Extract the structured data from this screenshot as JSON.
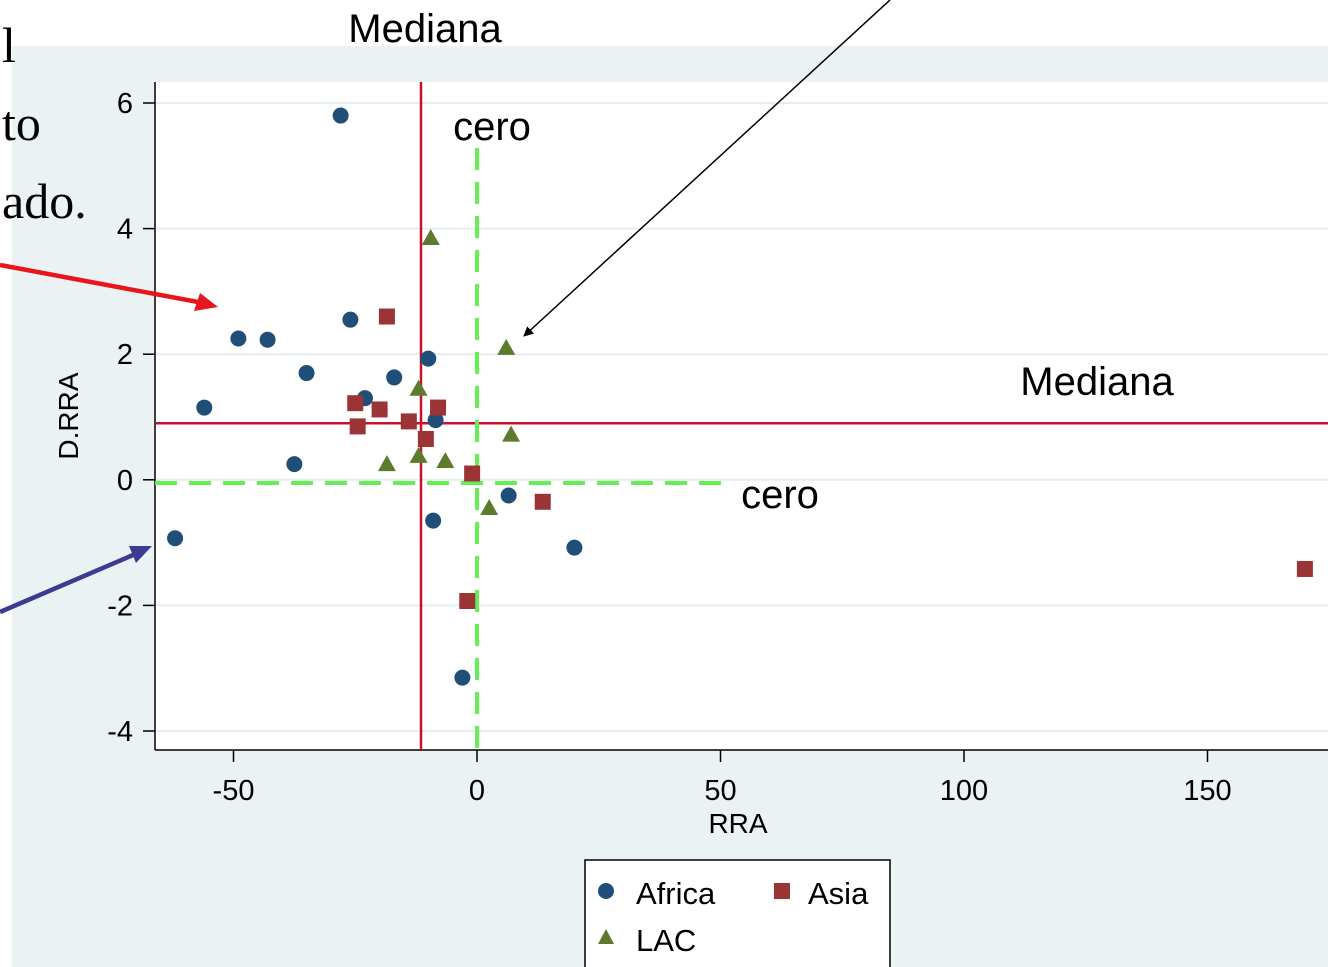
{
  "chart_data": {
    "type": "scatter",
    "xlabel": "RRA",
    "ylabel": "D.RRA",
    "xlim": [
      -66,
      175
    ],
    "ylim": [
      -4.4,
      6.4
    ],
    "x_ticks": [
      -50,
      0,
      50,
      100,
      150
    ],
    "y_ticks": [
      -4,
      -2,
      0,
      2,
      4,
      6
    ],
    "grid": "horizontal",
    "legend": "bottom",
    "series": [
      {
        "name": "Africa",
        "marker": "circle",
        "color": "#1f4e79",
        "points": [
          [
            -28,
            5.8
          ],
          [
            -26,
            2.55
          ],
          [
            -49,
            2.25
          ],
          [
            -43,
            2.23
          ],
          [
            -35,
            1.7
          ],
          [
            -56,
            1.15
          ],
          [
            -37.5,
            0.25
          ],
          [
            -23,
            1.3
          ],
          [
            -17,
            1.63
          ],
          [
            -10,
            1.93
          ],
          [
            -8.5,
            0.95
          ],
          [
            -9,
            -0.65
          ],
          [
            6.5,
            -0.25
          ],
          [
            20,
            -1.08
          ],
          [
            -3,
            -3.15
          ],
          [
            -62,
            -0.93
          ]
        ]
      },
      {
        "name": "Asia",
        "marker": "square",
        "color": "#9b3535",
        "points": [
          [
            -18.5,
            2.6
          ],
          [
            -25,
            1.22
          ],
          [
            -20,
            1.12
          ],
          [
            -8,
            1.15
          ],
          [
            -14,
            0.93
          ],
          [
            -24.5,
            0.85
          ],
          [
            -10.5,
            0.65
          ],
          [
            -1,
            0.1
          ],
          [
            13.5,
            -0.35
          ],
          [
            -2,
            -1.93
          ],
          [
            170,
            -1.42
          ]
        ]
      },
      {
        "name": "LAC",
        "marker": "triangle",
        "color": "#5e7a2e",
        "points": [
          [
            -9.5,
            3.85
          ],
          [
            6,
            2.1
          ],
          [
            -12,
            1.45
          ],
          [
            7,
            0.72
          ],
          [
            -18.5,
            0.25
          ],
          [
            -12,
            0.38
          ],
          [
            -6.5,
            0.3
          ],
          [
            2.5,
            -0.45
          ]
        ]
      }
    ],
    "reference_lines": [
      {
        "orientation": "vertical",
        "value": -11.5,
        "style": "solid",
        "color": "#c8102e",
        "label": "Mediana"
      },
      {
        "orientation": "horizontal",
        "value": 0.9,
        "style": "solid",
        "color": "#c8102e",
        "label": "Mediana"
      },
      {
        "orientation": "vertical",
        "value": 0,
        "style": "dashed",
        "color": "#66ee55",
        "label": "cero"
      },
      {
        "orientation": "horizontal",
        "value": -0.05,
        "style": "dashed",
        "color": "#66ee55",
        "label": "cero"
      }
    ]
  },
  "fragments": [
    "l",
    "to",
    "ado."
  ],
  "colors": {
    "plot_region_bg": "#eaf2f3",
    "red_arrow": "#e8151b",
    "blue_arrow": "#3b3b91",
    "black_arrow": "#000000"
  }
}
